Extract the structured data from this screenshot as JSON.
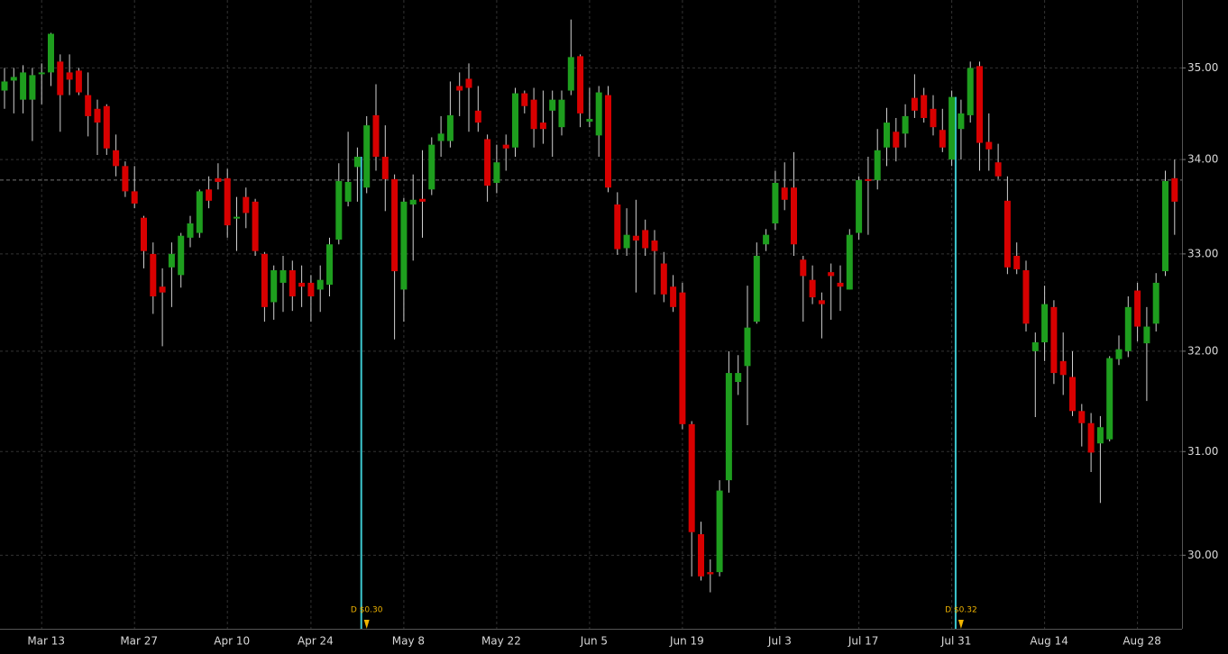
{
  "chart_data": {
    "type": "candlestick",
    "log_scale": true,
    "grid": true,
    "up_color": "#1e9e1e",
    "down_color": "#d80000",
    "wick_color": "#d0d0d0",
    "categories": [
      null,
      null,
      null,
      null,
      "Mar 13",
      null,
      null,
      null,
      null,
      null,
      null,
      null,
      null,
      null,
      "Mar 27",
      null,
      null,
      null,
      null,
      null,
      null,
      null,
      null,
      null,
      "Apr 10",
      null,
      null,
      null,
      null,
      null,
      null,
      null,
      null,
      "Apr 24",
      null,
      null,
      null,
      null,
      null,
      null,
      null,
      null,
      null,
      "May 8",
      null,
      null,
      null,
      null,
      null,
      null,
      null,
      null,
      null,
      "May 22",
      null,
      null,
      null,
      null,
      null,
      null,
      null,
      null,
      null,
      "Jun 5",
      null,
      null,
      null,
      null,
      null,
      null,
      null,
      null,
      null,
      "Jun 19",
      null,
      null,
      null,
      null,
      null,
      null,
      null,
      null,
      null,
      "Jul 3",
      null,
      null,
      null,
      null,
      null,
      null,
      null,
      null,
      "Jul 17",
      null,
      null,
      null,
      null,
      null,
      null,
      null,
      null,
      null,
      "Jul 31",
      null,
      null,
      null,
      null,
      null,
      null,
      null,
      null,
      null,
      "Aug 14",
      null,
      null,
      null,
      null,
      null,
      null,
      null,
      null,
      null,
      "Aug 28",
      null,
      null,
      null,
      null
    ],
    "open": [
      34.75,
      34.86,
      34.65,
      34.65,
      34.93,
      34.95,
      35.07,
      34.95,
      34.97,
      34.7,
      34.55,
      34.58,
      34.1,
      33.93,
      33.66,
      33.38,
      33.0,
      32.66,
      32.86,
      32.78,
      33.17,
      33.22,
      33.68,
      33.8,
      33.8,
      33.39,
      33.6,
      33.55,
      33.0,
      32.5,
      32.7,
      32.83,
      32.7,
      32.7,
      32.63,
      32.68,
      33.15,
      33.55,
      33.92,
      33.7,
      34.48,
      34.03,
      33.79,
      32.63,
      33.52,
      33.58,
      33.68,
      34.2,
      34.2,
      34.8,
      34.88,
      34.53,
      34.22,
      33.75,
      34.16,
      34.13,
      34.72,
      34.65,
      34.4,
      34.53,
      34.35,
      34.75,
      35.13,
      34.41,
      34.26,
      34.7,
      33.52,
      33.06,
      33.19,
      33.25,
      33.14,
      32.9,
      32.66,
      32.6,
      31.27,
      30.2,
      29.84,
      29.84,
      30.72,
      31.69,
      31.85,
      32.3,
      33.1,
      33.32,
      33.7,
      33.7,
      32.94,
      32.73,
      32.52,
      32.81,
      32.7,
      32.63,
      33.22,
      33.79,
      33.78,
      34.13,
      34.3,
      34.28,
      34.67,
      34.7,
      34.55,
      34.32,
      34.0,
      34.33,
      34.48,
      35.02,
      34.19,
      33.97,
      33.56,
      32.98,
      32.83,
      32.0,
      32.09,
      32.45,
      31.9,
      31.74,
      31.4,
      31.28,
      31.08,
      31.12,
      31.92,
      32.0,
      32.62,
      32.08,
      32.28,
      32.82,
      33.8
    ],
    "high": [
      35.0,
      35.0,
      35.03,
      35.0,
      35.05,
      35.39,
      35.15,
      35.15,
      35.0,
      34.95,
      34.65,
      34.6,
      34.27,
      33.98,
      33.93,
      33.4,
      33.12,
      32.85,
      33.12,
      33.22,
      33.4,
      33.68,
      33.82,
      33.96,
      33.9,
      33.6,
      33.7,
      33.58,
      33.02,
      32.88,
      32.98,
      32.93,
      32.88,
      32.78,
      32.88,
      33.17,
      33.96,
      34.3,
      34.13,
      34.47,
      34.82,
      34.37,
      33.84,
      33.59,
      33.84,
      34.1,
      34.24,
      34.47,
      34.85,
      34.95,
      35.05,
      34.8,
      34.27,
      34.16,
      34.27,
      34.78,
      34.75,
      34.78,
      34.75,
      34.75,
      34.75,
      35.54,
      35.15,
      34.78,
      34.8,
      34.8,
      33.65,
      33.48,
      33.57,
      33.36,
      33.25,
      33.02,
      32.78,
      32.7,
      31.3,
      30.32,
      29.96,
      30.72,
      32.0,
      31.96,
      32.67,
      33.12,
      33.26,
      33.88,
      33.97,
      34.08,
      32.98,
      32.88,
      32.6,
      32.9,
      32.88,
      33.26,
      33.82,
      34.03,
      34.33,
      34.56,
      34.45,
      34.6,
      34.93,
      34.78,
      34.7,
      34.55,
      34.75,
      34.65,
      35.07,
      35.07,
      34.5,
      34.17,
      33.82,
      33.12,
      32.93,
      32.19,
      32.67,
      32.52,
      32.19,
      32.0,
      31.47,
      31.38,
      31.35,
      31.95,
      32.16,
      32.56,
      32.7,
      32.45,
      32.8,
      33.88,
      34.0
    ],
    "low": [
      34.55,
      34.5,
      34.5,
      34.2,
      34.6,
      34.8,
      34.3,
      34.7,
      34.7,
      34.25,
      34.05,
      34.05,
      33.82,
      33.6,
      33.48,
      32.85,
      32.38,
      32.05,
      32.45,
      32.65,
      33.07,
      33.17,
      33.48,
      33.68,
      33.17,
      33.03,
      33.27,
      32.98,
      32.3,
      32.32,
      32.4,
      32.41,
      32.45,
      32.3,
      32.4,
      32.56,
      33.1,
      33.5,
      33.55,
      33.64,
      33.88,
      33.45,
      32.12,
      32.3,
      32.93,
      33.17,
      33.62,
      34.03,
      34.13,
      34.47,
      34.3,
      34.3,
      33.55,
      33.64,
      33.88,
      34.03,
      34.5,
      34.13,
      34.17,
      34.03,
      34.26,
      34.7,
      34.35,
      34.35,
      34.03,
      33.65,
      32.99,
      32.98,
      32.6,
      32.98,
      32.58,
      32.5,
      32.4,
      31.22,
      29.8,
      29.76,
      29.65,
      29.8,
      30.6,
      31.56,
      31.26,
      32.28,
      33.03,
      33.25,
      33.46,
      32.98,
      32.3,
      32.48,
      32.13,
      32.32,
      32.41,
      32.63,
      33.15,
      33.2,
      33.68,
      33.93,
      33.98,
      34.13,
      34.45,
      34.4,
      34.26,
      34.08,
      33.93,
      34.0,
      34.4,
      33.88,
      33.88,
      33.79,
      32.79,
      32.79,
      32.2,
      31.34,
      31.9,
      31.67,
      31.56,
      31.35,
      31.05,
      30.8,
      30.5,
      31.1,
      31.86,
      31.94,
      32.1,
      31.5,
      32.2,
      32.77,
      33.2
    ],
    "close": [
      34.85,
      34.9,
      34.95,
      34.92,
      34.95,
      35.38,
      34.7,
      34.87,
      34.73,
      34.47,
      34.4,
      34.12,
      33.93,
      33.66,
      33.53,
      33.03,
      32.56,
      32.6,
      33.0,
      33.19,
      33.32,
      33.66,
      33.56,
      33.76,
      33.3,
      33.39,
      33.43,
      33.03,
      32.45,
      32.83,
      32.83,
      32.56,
      32.66,
      32.56,
      32.73,
      33.1,
      33.77,
      33.76,
      34.03,
      34.37,
      34.03,
      33.79,
      32.82,
      33.55,
      33.57,
      33.55,
      34.16,
      34.28,
      34.48,
      34.75,
      34.78,
      34.4,
      33.72,
      33.97,
      34.12,
      34.72,
      34.58,
      34.33,
      34.33,
      34.65,
      34.65,
      35.12,
      34.5,
      34.44,
      34.73,
      33.7,
      33.05,
      33.2,
      33.14,
      33.06,
      33.03,
      32.58,
      32.45,
      31.27,
      30.22,
      29.8,
      29.82,
      30.62,
      31.78,
      31.78,
      32.24,
      32.98,
      33.2,
      33.75,
      33.57,
      33.1,
      32.77,
      32.55,
      32.48,
      32.77,
      32.66,
      33.2,
      33.78,
      33.77,
      34.1,
      34.4,
      34.13,
      34.47,
      34.53,
      34.45,
      34.35,
      34.13,
      34.68,
      34.5,
      35.0,
      34.18,
      34.11,
      33.82,
      32.86,
      32.84,
      32.28,
      32.09,
      32.48,
      31.78,
      31.76,
      31.4,
      31.28,
      30.99,
      31.24,
      31.93,
      32.02,
      32.45,
      32.25,
      32.25,
      32.7,
      33.77,
      33.55
    ],
    "ylim": [
      29.31,
      35.76
    ],
    "yticks": [
      {
        "value": 30,
        "label": "30.00"
      },
      {
        "value": 31,
        "label": "31.00"
      },
      {
        "value": 32,
        "label": "32.00"
      },
      {
        "value": 33,
        "label": "33.00"
      },
      {
        "value": 34,
        "label": "34.00"
      },
      {
        "value": 35,
        "label": "35.00"
      }
    ],
    "reference_line": 33.78,
    "annotations": [
      {
        "label": "D $0.30",
        "category_index": 39
      },
      {
        "label": "D $0.32",
        "category_index": 103
      }
    ]
  }
}
